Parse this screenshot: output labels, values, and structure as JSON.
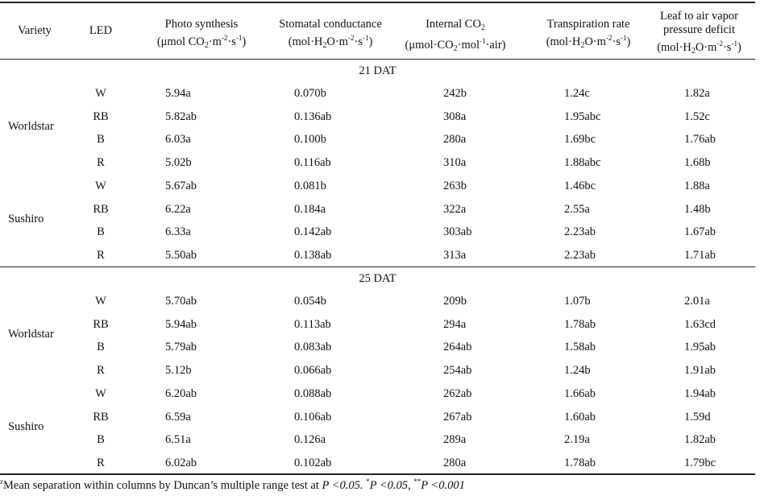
{
  "header": {
    "variety": "Variety",
    "led": "LED",
    "ps": {
      "line1": "Photo synthesis",
      "a": "(μmol CO",
      "s1": "2",
      "b": "·m",
      "s2": "-2",
      "c": "·s",
      "s3": "-1",
      "d": ")"
    },
    "sc": {
      "line1": "Stomatal conductance",
      "a": "(mol·H",
      "s1": "2",
      "b": "O·m",
      "s2": "-2",
      "c": "·s",
      "s3": "-1",
      "d": ")"
    },
    "ic": {
      "a": "Internal CO",
      "s0": "2",
      "b": "(μmol·CO",
      "s1": "2",
      "c": "·mol",
      "s2": "-1",
      "d": "·air)"
    },
    "tr": {
      "line1": "Transpiration rate",
      "a": "(mol·H",
      "s1": "2",
      "b": "O·m",
      "s2": "-2",
      "c": "·s",
      "s3": "-1",
      "d": ")"
    },
    "la": {
      "line1": "Leaf to air vapor",
      "line2": "pressure deficit",
      "a": "(mol·H",
      "s1": "2",
      "b": "O·m",
      "s2": "-2",
      "c": "·s",
      "s3": "-1",
      "d": ")"
    }
  },
  "sections": [
    {
      "day": "21 DAT",
      "groups": [
        {
          "variety": "Worldstar",
          "rows": [
            {
              "led": "W",
              "ps": "5.94a",
              "sc": "0.070b",
              "ic": "242b",
              "tr": "1.24c",
              "la": "1.82a"
            },
            {
              "led": "RB",
              "ps": "5.82ab",
              "sc": "0.136ab",
              "ic": "308a",
              "tr": "1.95abc",
              "la": "1.52c"
            },
            {
              "led": "B",
              "ps": "6.03a",
              "sc": "0.100b",
              "ic": "280a",
              "tr": "1.69bc",
              "la": "1.76ab"
            },
            {
              "led": "R",
              "ps": "5.02b",
              "sc": "0.116ab",
              "ic": "310a",
              "tr": "1.88abc",
              "la": "1.68b"
            }
          ]
        },
        {
          "variety": "Sushiro",
          "rows": [
            {
              "led": "W",
              "ps": "5.67ab",
              "sc": "0.081b",
              "ic": "263b",
              "tr": "1.46bc",
              "la": "1.88a"
            },
            {
              "led": "RB",
              "ps": "6.22a",
              "sc": "0.184a",
              "ic": "322a",
              "tr": "2.55a",
              "la": "1.48b"
            },
            {
              "led": "B",
              "ps": "6.33a",
              "sc": "0.142ab",
              "ic": "303ab",
              "tr": "2.23ab",
              "la": "1.67ab"
            },
            {
              "led": "R",
              "ps": "5.50ab",
              "sc": "0.138ab",
              "ic": "313a",
              "tr": "2.23ab",
              "la": "1.71ab"
            }
          ]
        }
      ]
    },
    {
      "day": "25 DAT",
      "groups": [
        {
          "variety": "Worldstar",
          "rows": [
            {
              "led": "W",
              "ps": "5.70ab",
              "sc": "0.054b",
              "ic": "209b",
              "tr": "1.07b",
              "la": "2.01a"
            },
            {
              "led": "RB",
              "ps": "5.94ab",
              "sc": "0.113ab",
              "ic": "294a",
              "tr": "1.78ab",
              "la": "1.63cd"
            },
            {
              "led": "B",
              "ps": "5.79ab",
              "sc": "0.083ab",
              "ic": "264ab",
              "tr": "1.58ab",
              "la": "1.95ab"
            },
            {
              "led": "R",
              "ps": "5.12b",
              "sc": "0.066ab",
              "ic": "254ab",
              "tr": "1.24b",
              "la": "1.91ab"
            }
          ]
        },
        {
          "variety": "Sushiro",
          "rows": [
            {
              "led": "W",
              "ps": "6.20ab",
              "sc": "0.088ab",
              "ic": "262ab",
              "tr": "1.66ab",
              "la": "1.94ab"
            },
            {
              "led": "RB",
              "ps": "6.59a",
              "sc": "0.106ab",
              "ic": "267ab",
              "tr": "1.60ab",
              "la": "1.59d"
            },
            {
              "led": "B",
              "ps": "6.51a",
              "sc": "0.126a",
              "ic": "289a",
              "tr": "2.19a",
              "la": "1.82ab"
            },
            {
              "led": "R",
              "ps": "6.02ab",
              "sc": "0.102ab",
              "ic": "280a",
              "tr": "1.78ab",
              "la": "1.79bc"
            }
          ]
        }
      ]
    }
  ],
  "footnote": {
    "z": "z",
    "text": "Mean separation within columns by Duncan’s multiple range test at ",
    "p1": "P <0.05.",
    "star": "*",
    "p2": "P <0.05,",
    "stars": "**",
    "p3": "P <0.001"
  }
}
